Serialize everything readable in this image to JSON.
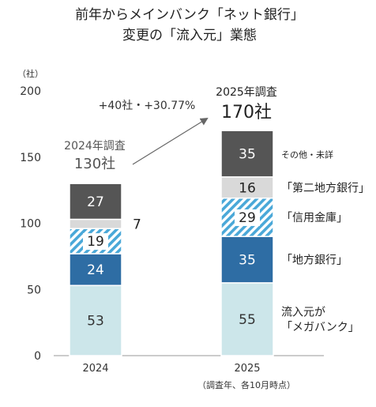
{
  "chart_data": {
    "type": "bar",
    "stacked": true,
    "title_line1": "前年からメインバンク「ネット銀行」",
    "title_line2": "変更の「流入元」業態",
    "unit_label": "（社）",
    "ylim": [
      0,
      200
    ],
    "yticks": [
      0,
      50,
      100,
      150,
      200
    ],
    "categories": [
      "2024",
      "2025"
    ],
    "series": [
      {
        "name": "流入元が\n「メガバンク」",
        "values": [
          53,
          55
        ],
        "color": "#cce6ea",
        "text_color": "#333333"
      },
      {
        "name": "「地方銀行」",
        "values": [
          24,
          35
        ],
        "color": "#2e6da4",
        "text_color": "#ffffff"
      },
      {
        "name": "「信用金庫」",
        "values": [
          19,
          29
        ],
        "color": "#4aa8d8",
        "text_color": "#222222",
        "hatched": true
      },
      {
        "name": "「第二地方銀行」",
        "values": [
          7,
          16
        ],
        "color": "#d9d9d9",
        "text_color": "#222222"
      },
      {
        "name": "その他・未詳",
        "values": [
          27,
          35
        ],
        "color": "#555555",
        "text_color": "#ffffff"
      }
    ],
    "totals": [
      {
        "label": "2024年調査",
        "value": "130",
        "unit": "社"
      },
      {
        "label": "2025年調査",
        "value": "170",
        "unit": "社"
      }
    ],
    "change_label": "+40社・+30.77%",
    "footnote": "（調査年、各10月時点）"
  }
}
